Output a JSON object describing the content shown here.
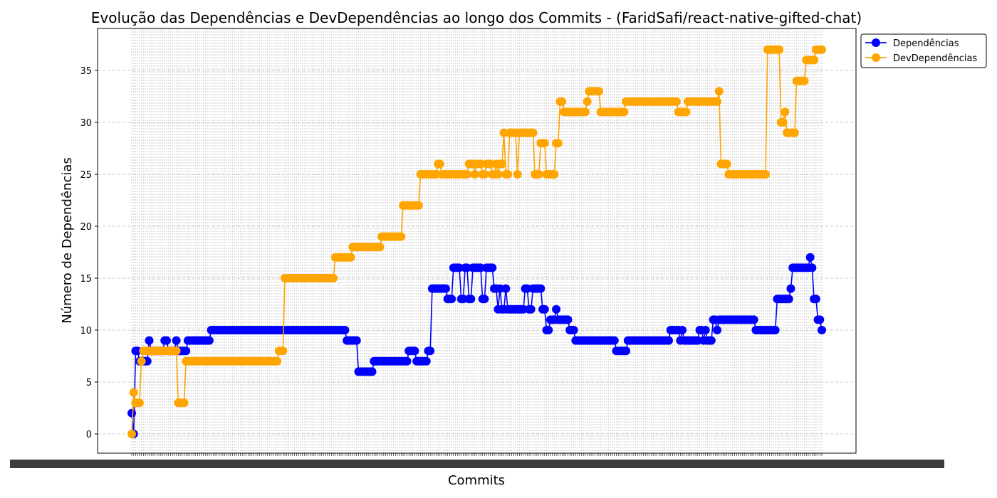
{
  "chart_data": {
    "type": "line",
    "title": "Evolução das Dependências e DevDependências ao longo dos Commits - (FaridSafi/react-native-gifted-chat)",
    "xlabel": "Commits",
    "ylabel": "Número de Dependências",
    "ylim": [
      -1.8,
      38.8
    ],
    "yticks": [
      0,
      5,
      10,
      15,
      20,
      25,
      30,
      35
    ],
    "grid": true,
    "legend_position": "upper-right-outside",
    "series": [
      {
        "name": "Dependências",
        "color": "#0000ff",
        "runs": [
          [
            2,
            1
          ],
          [
            0,
            1
          ],
          [
            8,
            2
          ],
          [
            7,
            5
          ],
          [
            9,
            1
          ],
          [
            8,
            7
          ],
          [
            9,
            2
          ],
          [
            8,
            4
          ],
          [
            9,
            1
          ],
          [
            8,
            5
          ],
          [
            9,
            12
          ],
          [
            10,
            70
          ],
          [
            9,
            6
          ],
          [
            6,
            8
          ],
          [
            7,
            18
          ],
          [
            8,
            4
          ],
          [
            7,
            6
          ],
          [
            8,
            2
          ],
          [
            14,
            8
          ],
          [
            13,
            3
          ],
          [
            16,
            4
          ],
          [
            13,
            2
          ],
          [
            16,
            2
          ],
          [
            13,
            2
          ],
          [
            16,
            5
          ],
          [
            13,
            2
          ],
          [
            16,
            4
          ],
          [
            14,
            2
          ],
          [
            12,
            1
          ],
          [
            14,
            1
          ],
          [
            12,
            2
          ],
          [
            14,
            1
          ],
          [
            12,
            9
          ],
          [
            14,
            2
          ],
          [
            12,
            2
          ],
          [
            14,
            5
          ],
          [
            12,
            2
          ],
          [
            10,
            2
          ],
          [
            11,
            3
          ],
          [
            12,
            1
          ],
          [
            11,
            6
          ],
          [
            10,
            3
          ],
          [
            9,
            21
          ],
          [
            8,
            6
          ],
          [
            9,
            22
          ],
          [
            10,
            5
          ],
          [
            9,
            1
          ],
          [
            10,
            1
          ],
          [
            9,
            8
          ],
          [
            10,
            2
          ],
          [
            9,
            1
          ],
          [
            10,
            1
          ],
          [
            9,
            3
          ],
          [
            11,
            2
          ],
          [
            10,
            1
          ],
          [
            11,
            19
          ],
          [
            10,
            11
          ],
          [
            13,
            7
          ],
          [
            14,
            1
          ],
          [
            16,
            9
          ],
          [
            17,
            1
          ],
          [
            16,
            1
          ],
          [
            13,
            2
          ],
          [
            11,
            2
          ],
          [
            10,
            6
          ]
        ]
      },
      {
        "name": "DevDependências",
        "color": "#ffa500",
        "runs": [
          [
            0,
            1
          ],
          [
            4,
            1
          ],
          [
            3,
            3
          ],
          [
            7,
            1
          ],
          [
            8,
            18
          ],
          [
            3,
            4
          ],
          [
            7,
            48
          ],
          [
            8,
            3
          ],
          [
            15,
            26
          ],
          [
            17,
            9
          ],
          [
            18,
            15
          ],
          [
            19,
            11
          ],
          [
            22,
            9
          ],
          [
            25,
            9
          ],
          [
            26,
            2
          ],
          [
            25,
            14
          ],
          [
            26,
            3
          ],
          [
            25,
            1
          ],
          [
            26,
            3
          ],
          [
            25,
            2
          ],
          [
            26,
            3
          ],
          [
            25,
            2
          ],
          [
            26,
            1
          ],
          [
            25,
            1
          ],
          [
            26,
            2
          ],
          [
            29,
            1
          ],
          [
            25,
            2
          ],
          [
            29,
            4
          ],
          [
            25,
            1
          ],
          [
            29,
            8
          ],
          [
            25,
            3
          ],
          [
            28,
            3
          ],
          [
            25,
            5
          ],
          [
            28,
            2
          ],
          [
            32,
            2
          ],
          [
            31,
            12
          ],
          [
            32,
            1
          ],
          [
            33,
            6
          ],
          [
            31,
            13
          ],
          [
            32,
            27
          ],
          [
            31,
            5
          ],
          [
            32,
            16
          ],
          [
            33,
            1
          ],
          [
            26,
            4
          ],
          [
            25,
            20
          ],
          [
            37,
            7
          ],
          [
            30,
            2
          ],
          [
            31,
            1
          ],
          [
            29,
            5
          ],
          [
            34,
            5
          ],
          [
            36,
            5
          ],
          [
            37,
            4
          ]
        ]
      }
    ]
  }
}
